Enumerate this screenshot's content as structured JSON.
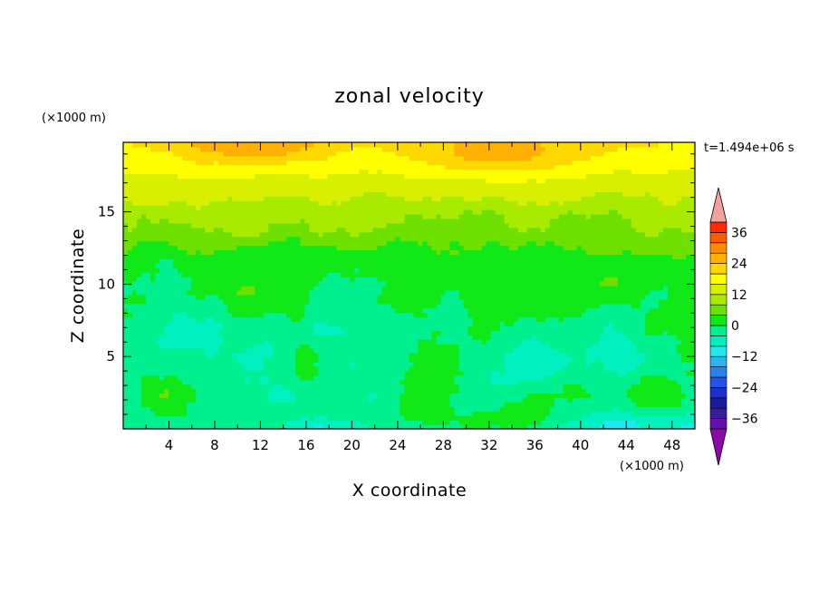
{
  "chart_data": {
    "type": "heatmap",
    "title": "zonal velocity",
    "xlabel": "X coordinate",
    "ylabel": "Z coordinate",
    "x_unit": "(×1000 m)",
    "y_unit": "(×1000 m)",
    "time_label": "t=1.494e+06 s",
    "xlim": [
      0,
      50
    ],
    "ylim": [
      0,
      19.8
    ],
    "x_ticks": [
      4,
      8,
      12,
      16,
      20,
      24,
      28,
      32,
      36,
      40,
      44,
      48
    ],
    "y_ticks": [
      5,
      10,
      15
    ],
    "colorbar": {
      "levels": [
        -40,
        -36,
        -32,
        -28,
        -24,
        -20,
        -16,
        -12,
        -8,
        -4,
        0,
        4,
        8,
        12,
        16,
        20,
        24,
        28,
        32,
        36,
        40
      ],
      "colors": [
        "#6a0dad",
        "#3a1a9e",
        "#1a1a9c",
        "#1e2fd2",
        "#2453ea",
        "#2b80f0",
        "#2ab4f2",
        "#20e8ee",
        "#00f0c0",
        "#00f090",
        "#10e818",
        "#6ee000",
        "#a8ea00",
        "#d8f000",
        "#ffff00",
        "#ffd800",
        "#ffb000",
        "#ff8c00",
        "#ff5a00",
        "#ff2a00"
      ],
      "tick_labels": [
        36,
        24,
        12,
        0,
        -12,
        -24,
        -36
      ],
      "extend_colors": {
        "over": "#f4a0a0",
        "under": "#8b0aa8"
      }
    },
    "grid": false,
    "field_description": {
      "top_band_z_range": [
        17,
        19.8
      ],
      "top_band_value_range": [
        16,
        28
      ],
      "upper_middle_z_range": [
        12,
        17
      ],
      "upper_middle_value_range": [
        4,
        16
      ],
      "lower_z_range": [
        0,
        12
      ],
      "lower_value_range": [
        -12,
        4
      ]
    }
  }
}
